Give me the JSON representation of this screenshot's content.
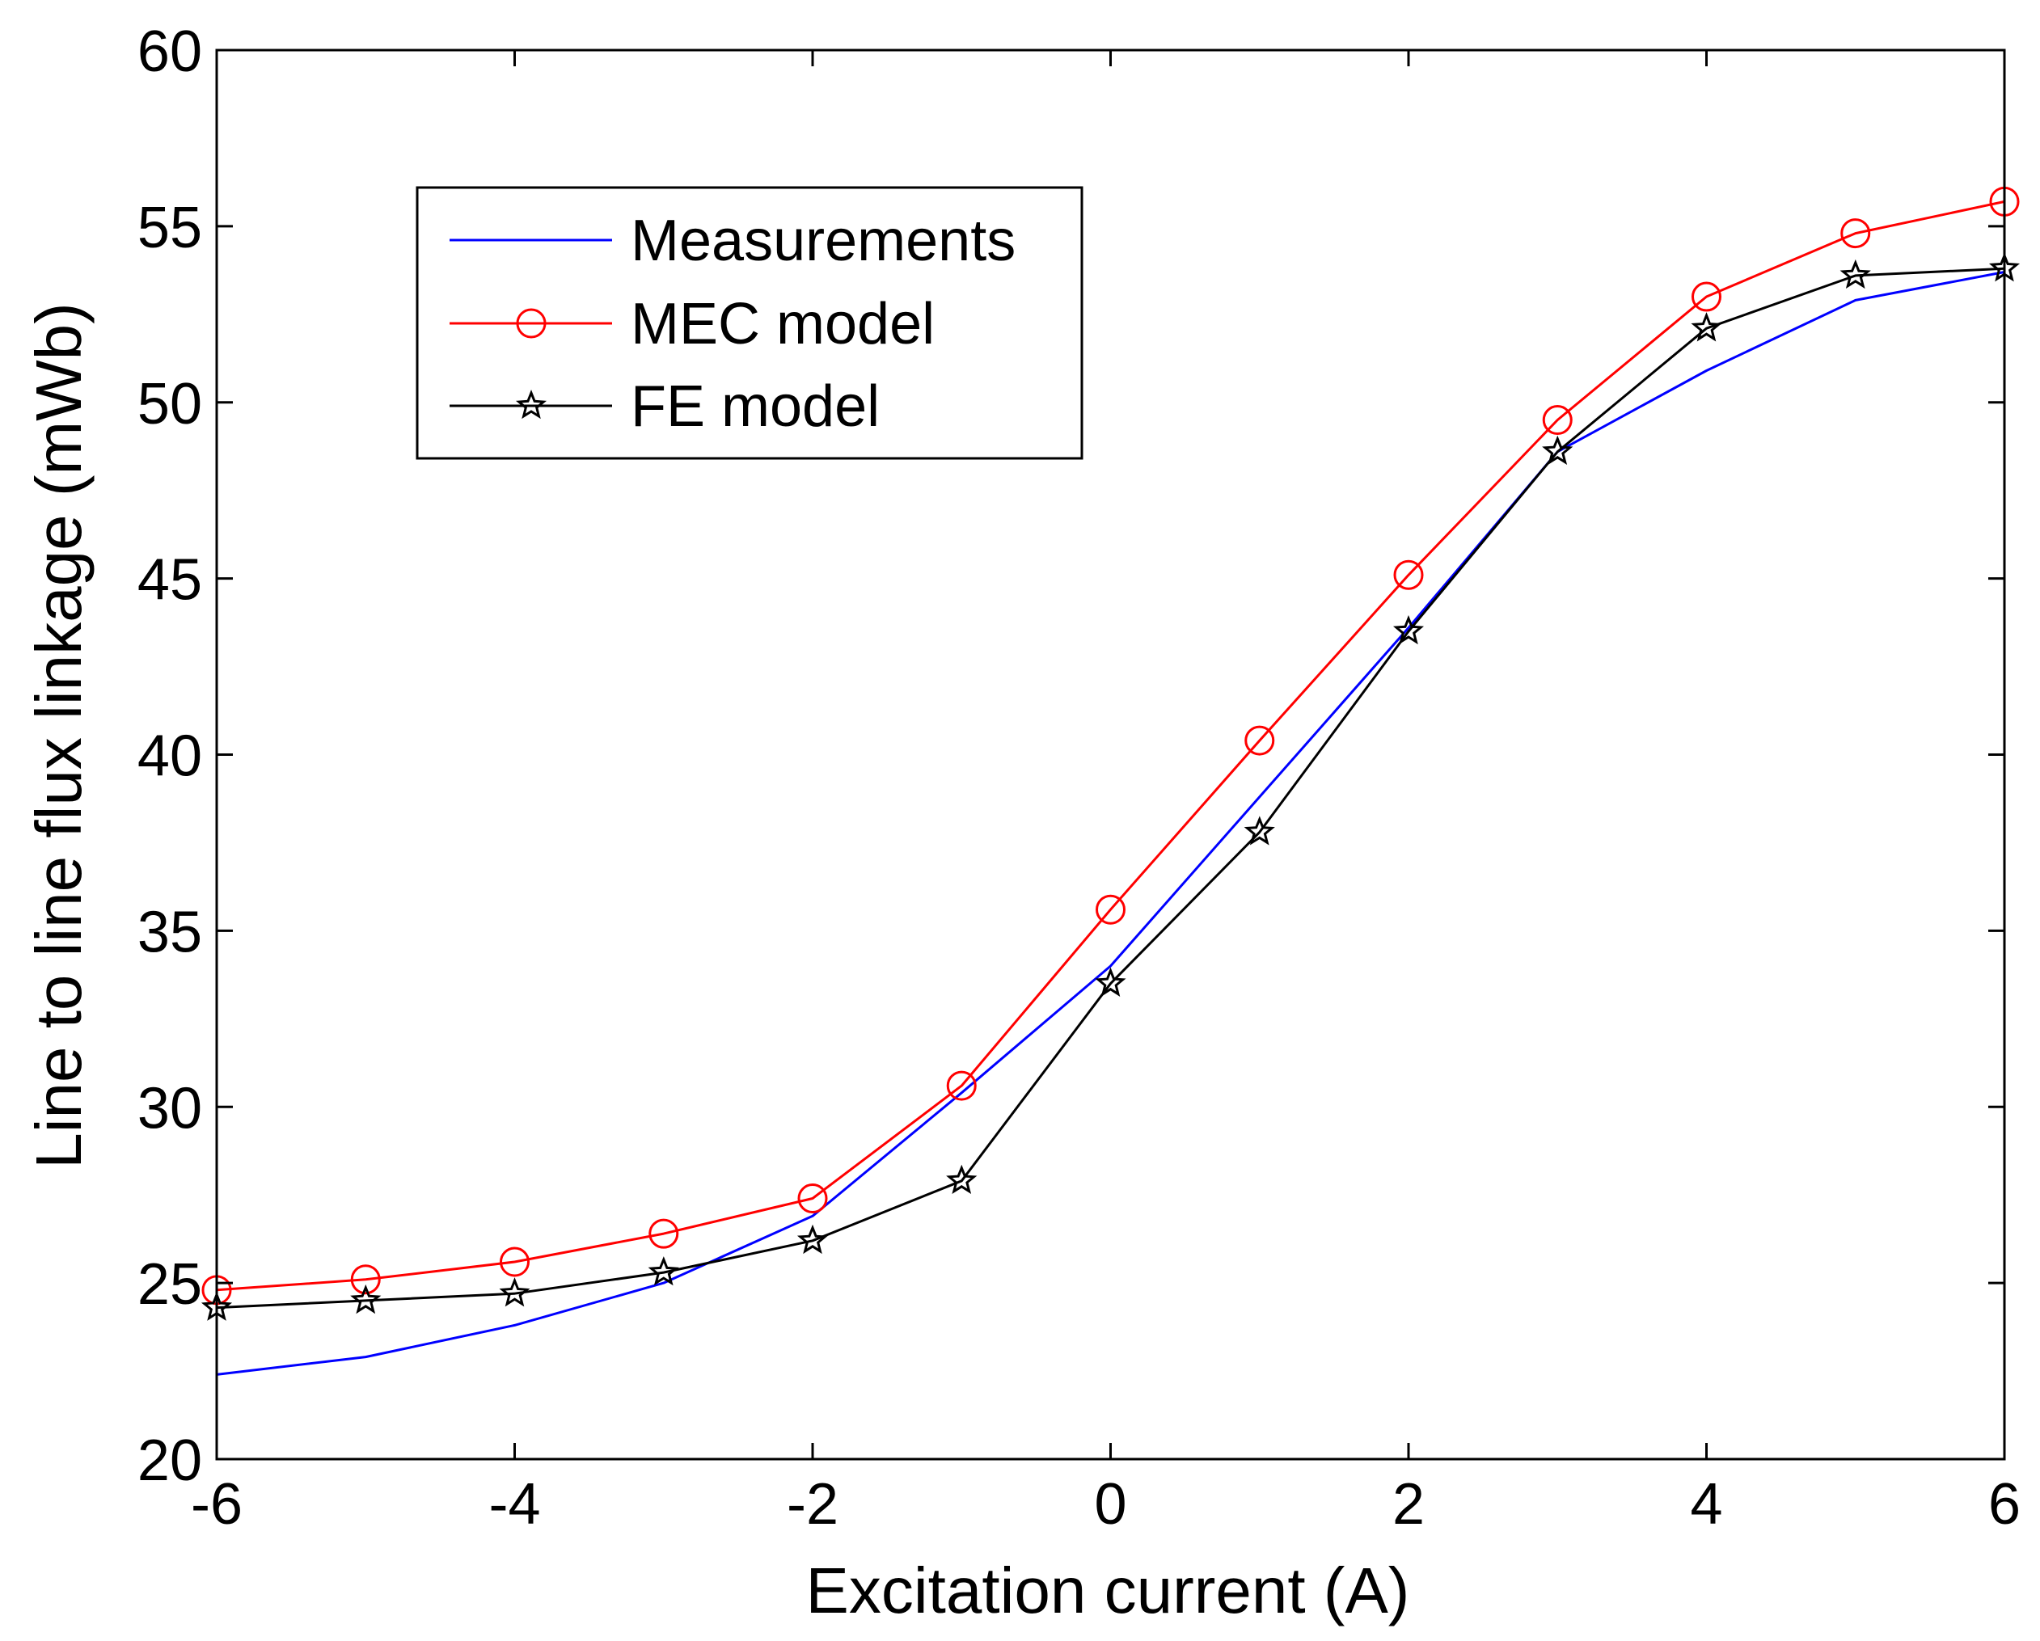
{
  "chart_data": {
    "type": "line",
    "title": "",
    "xlabel": "Excitation current (A)",
    "ylabel": "Line to line flux linkage (mWb)",
    "xlim": [
      -6,
      6
    ],
    "ylim": [
      20,
      60
    ],
    "xticks": [
      -6,
      -4,
      -2,
      0,
      2,
      4,
      6
    ],
    "yticks": [
      20,
      25,
      30,
      35,
      40,
      45,
      50,
      55,
      60
    ],
    "grid": false,
    "legend_position": "top-left",
    "x": [
      -6,
      -5,
      -4,
      -3,
      -2,
      -1,
      0,
      1,
      2,
      3,
      4,
      5,
      6
    ],
    "series": [
      {
        "name": "Measurements",
        "color": "#0000ff",
        "marker": "none",
        "values": [
          22.4,
          22.9,
          23.8,
          25.0,
          26.9,
          30.4,
          34.0,
          38.8,
          43.6,
          48.6,
          50.9,
          52.9,
          53.7
        ]
      },
      {
        "name": "MEC model",
        "color": "#ff0000",
        "marker": "circle",
        "values": [
          24.8,
          25.1,
          25.6,
          26.4,
          27.4,
          30.6,
          35.6,
          40.4,
          45.1,
          49.5,
          53.0,
          54.8,
          55.7
        ]
      },
      {
        "name": "FE model",
        "color": "#000000",
        "marker": "star",
        "values": [
          24.3,
          24.5,
          24.7,
          25.3,
          26.2,
          27.9,
          33.5,
          37.8,
          43.5,
          48.6,
          52.1,
          53.6,
          53.8
        ]
      }
    ]
  }
}
